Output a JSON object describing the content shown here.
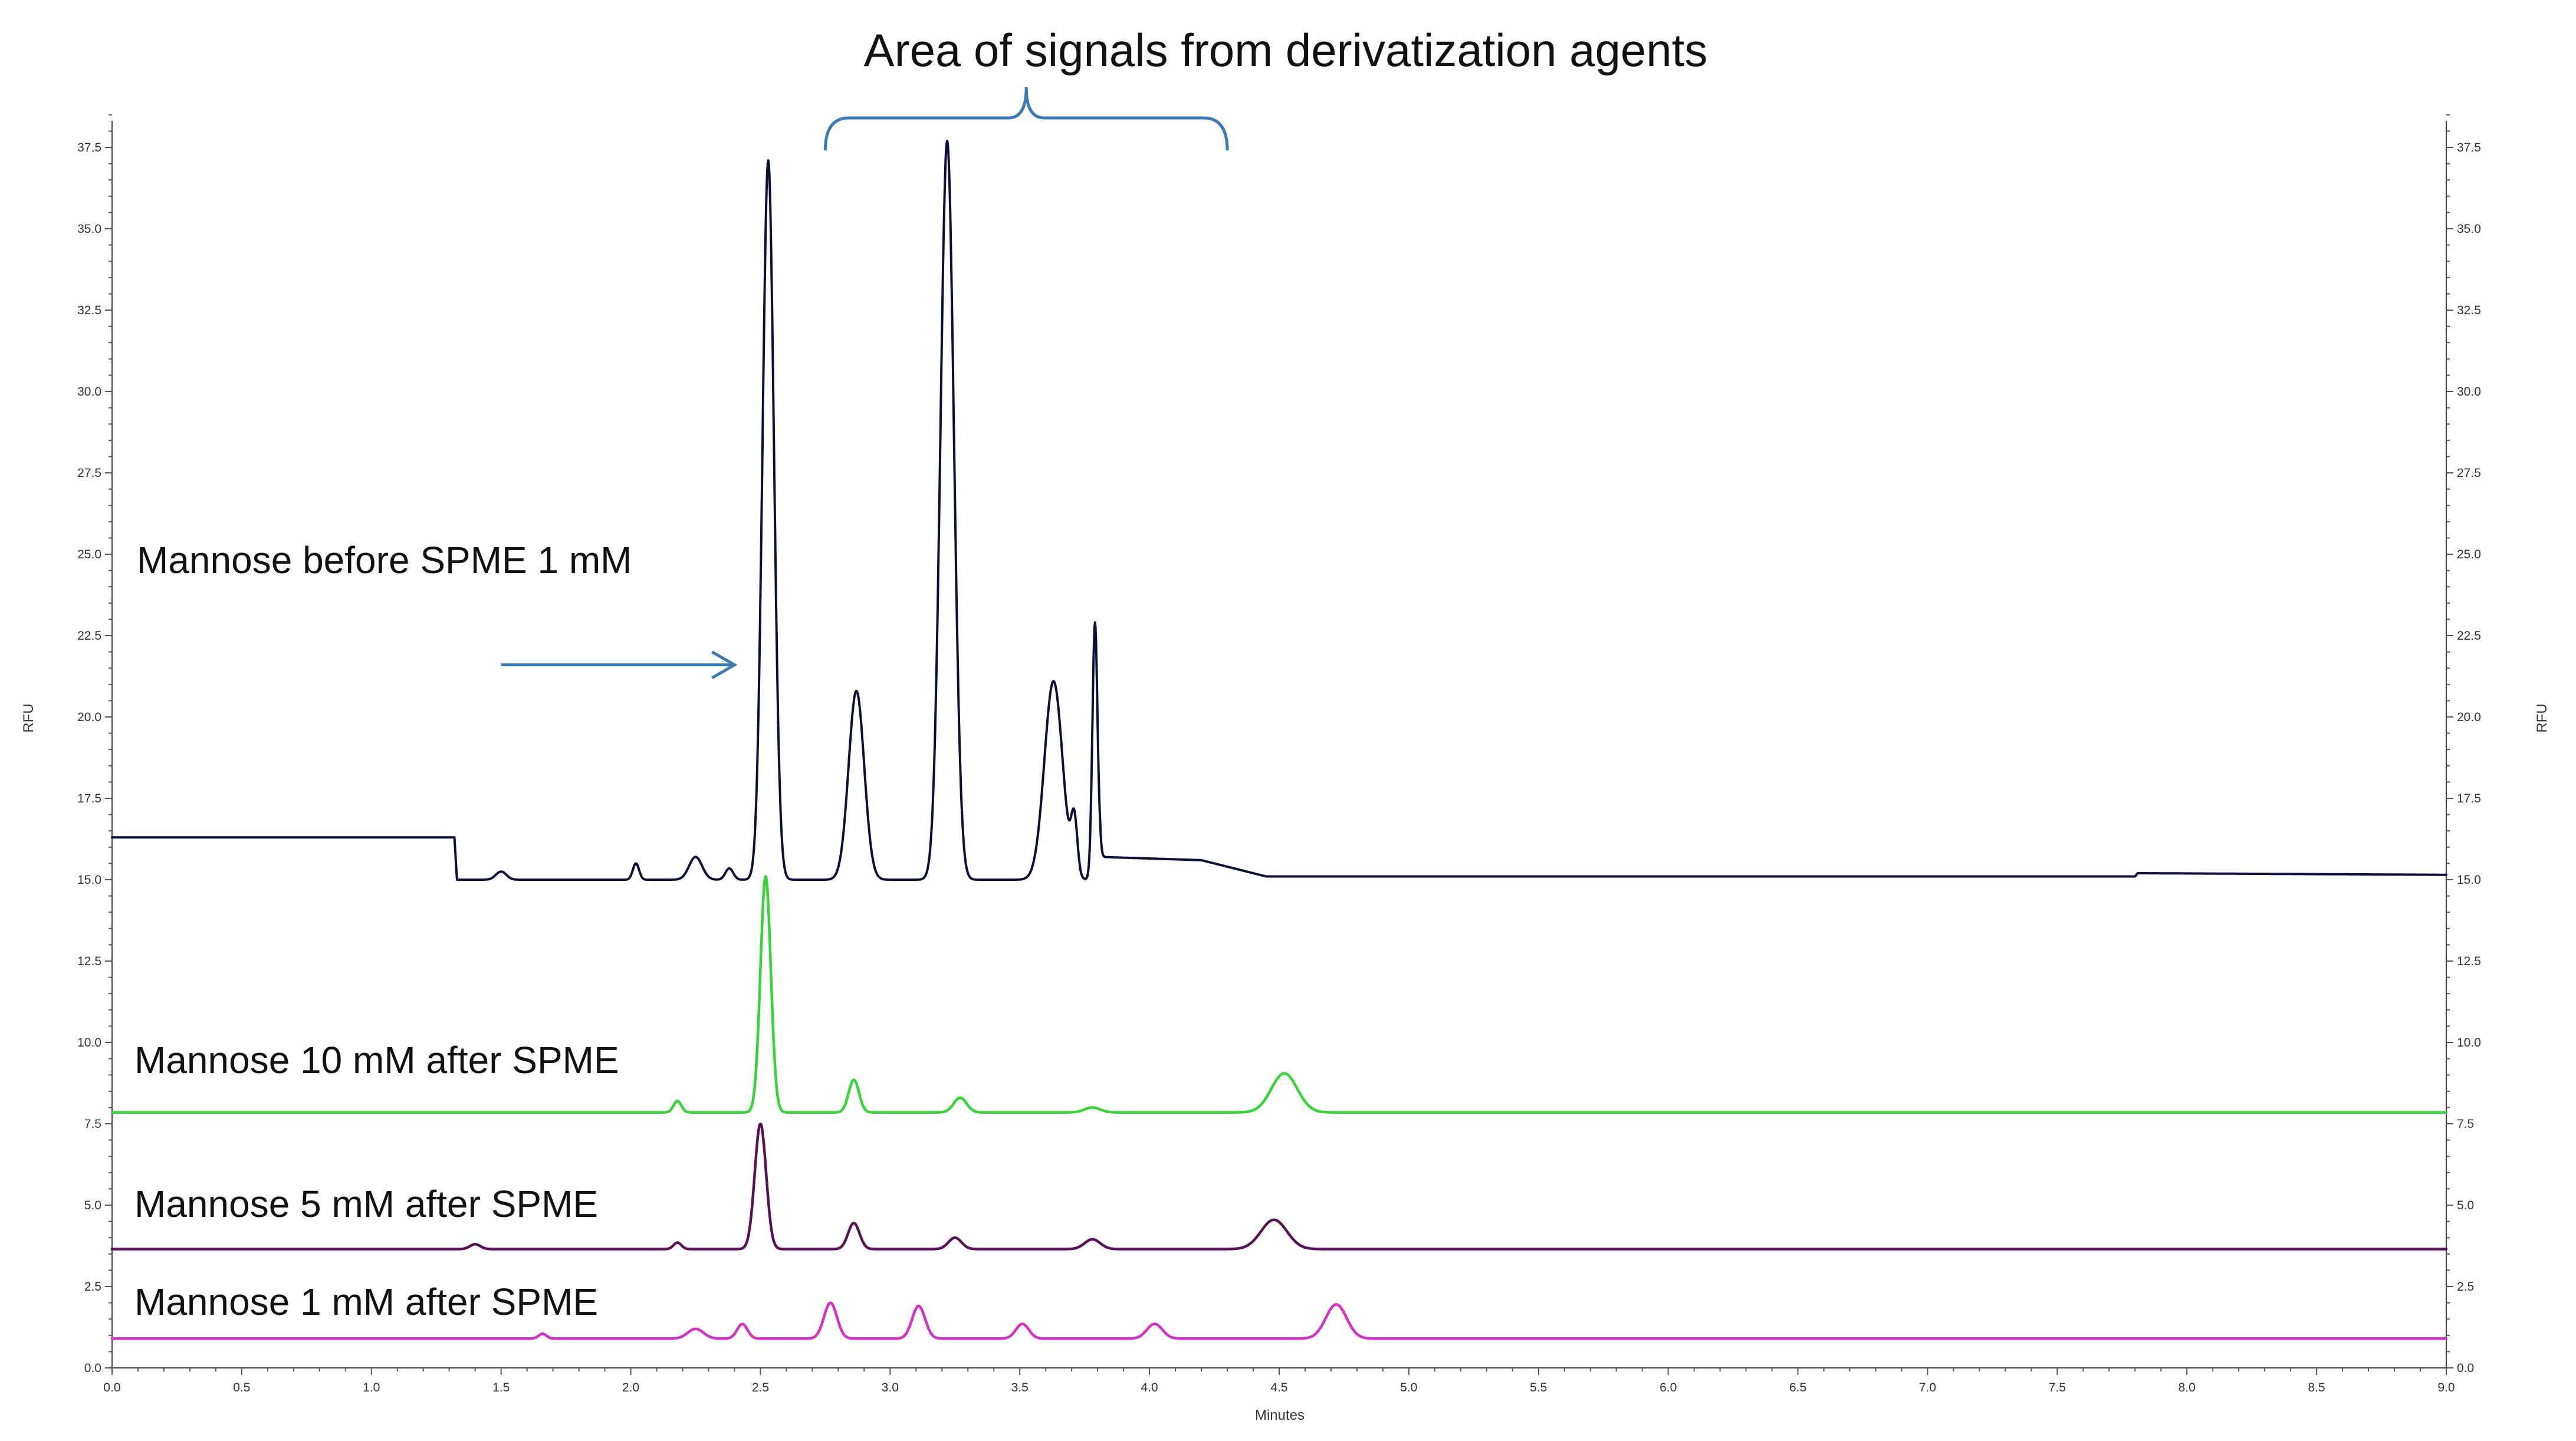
{
  "chart_data": {
    "type": "line",
    "title": "Area of signals from derivatization agents",
    "xlabel": "Minutes",
    "ylabel": "RFU",
    "y2label": "RFU",
    "xlim": [
      0.0,
      9.0
    ],
    "ylim": [
      0.0,
      38.5
    ],
    "x_ticks": [
      "0.0",
      "0.5",
      "1.0",
      "1.5",
      "2.0",
      "2.5",
      "3.0",
      "3.5",
      "4.0",
      "4.5",
      "5.0",
      "5.5",
      "6.0",
      "6.5",
      "7.0",
      "7.5",
      "8.0",
      "8.5",
      "9.0"
    ],
    "y_ticks": [
      "0.0",
      "2.5",
      "5.0",
      "7.5",
      "10.0",
      "12.5",
      "15.0",
      "17.5",
      "20.0",
      "22.5",
      "25.0",
      "27.5",
      "30.0",
      "32.5",
      "35.0",
      "37.5"
    ],
    "grid": false,
    "annotations": {
      "bracket_label": "Area of signals from derivatization agents",
      "bracket_x_range": [
        2.75,
        4.3
      ],
      "arrow": {
        "x_from": 1.5,
        "x_to": 2.4,
        "y": 21.6
      }
    },
    "series": [
      {
        "name": "Mannose before SPME 1 mM",
        "color": "#0b0f3a",
        "baseline": [
          [
            0.0,
            16.3
          ],
          [
            1.32,
            16.3
          ],
          [
            1.33,
            15.0
          ],
          [
            3.8,
            15.0
          ],
          [
            3.81,
            15.7
          ],
          [
            4.2,
            15.6
          ],
          [
            4.45,
            15.1
          ],
          [
            7.8,
            15.1
          ],
          [
            7.81,
            15.2
          ],
          [
            9.0,
            15.15
          ]
        ],
        "peaks": [
          {
            "x": 1.5,
            "h": 0.25,
            "w": 0.02
          },
          {
            "x": 2.02,
            "h": 0.5,
            "w": 0.012
          },
          {
            "x": 2.25,
            "h": 0.7,
            "w": 0.025
          },
          {
            "x": 2.38,
            "h": 0.35,
            "w": 0.015
          },
          {
            "x": 2.53,
            "h": 22.1,
            "w": 0.022
          },
          {
            "x": 2.87,
            "h": 5.8,
            "w": 0.03
          },
          {
            "x": 3.22,
            "h": 22.7,
            "w": 0.026
          },
          {
            "x": 3.63,
            "h": 6.1,
            "w": 0.035
          },
          {
            "x": 3.71,
            "h": 1.7,
            "w": 0.012
          },
          {
            "x": 3.79,
            "h": 7.9,
            "w": 0.01
          }
        ]
      },
      {
        "name": "Mannose 10 mM after SPME",
        "color": "#33d633",
        "baseline": [
          [
            0.0,
            7.85
          ],
          [
            9.0,
            7.85
          ]
        ],
        "peaks": [
          {
            "x": 2.18,
            "h": 0.35,
            "w": 0.015
          },
          {
            "x": 2.52,
            "h": 7.25,
            "w": 0.02
          },
          {
            "x": 2.86,
            "h": 1.0,
            "w": 0.02
          },
          {
            "x": 3.27,
            "h": 0.45,
            "w": 0.025
          },
          {
            "x": 3.78,
            "h": 0.15,
            "w": 0.03
          },
          {
            "x": 4.52,
            "h": 1.2,
            "w": 0.05
          }
        ]
      },
      {
        "name": "Mannose 5 mM after SPME",
        "color": "#5a0f57",
        "baseline": [
          [
            0.0,
            3.65
          ],
          [
            9.0,
            3.65
          ]
        ],
        "peaks": [
          {
            "x": 1.4,
            "h": 0.15,
            "w": 0.02
          },
          {
            "x": 2.18,
            "h": 0.2,
            "w": 0.015
          },
          {
            "x": 2.5,
            "h": 3.85,
            "w": 0.022
          },
          {
            "x": 2.86,
            "h": 0.8,
            "w": 0.022
          },
          {
            "x": 3.25,
            "h": 0.35,
            "w": 0.025
          },
          {
            "x": 3.78,
            "h": 0.3,
            "w": 0.03
          },
          {
            "x": 4.48,
            "h": 0.9,
            "w": 0.05
          }
        ]
      },
      {
        "name": "Mannose 1 mM after SPME",
        "color": "#d62fc8",
        "baseline": [
          [
            0.0,
            0.9
          ],
          [
            9.0,
            0.9
          ]
        ],
        "peaks": [
          {
            "x": 1.66,
            "h": 0.15,
            "w": 0.015
          },
          {
            "x": 2.25,
            "h": 0.3,
            "w": 0.03
          },
          {
            "x": 2.43,
            "h": 0.45,
            "w": 0.02
          },
          {
            "x": 2.77,
            "h": 1.1,
            "w": 0.025
          },
          {
            "x": 3.11,
            "h": 1.0,
            "w": 0.025
          },
          {
            "x": 3.51,
            "h": 0.45,
            "w": 0.025
          },
          {
            "x": 4.02,
            "h": 0.45,
            "w": 0.03
          },
          {
            "x": 4.72,
            "h": 1.05,
            "w": 0.04
          }
        ]
      }
    ]
  }
}
